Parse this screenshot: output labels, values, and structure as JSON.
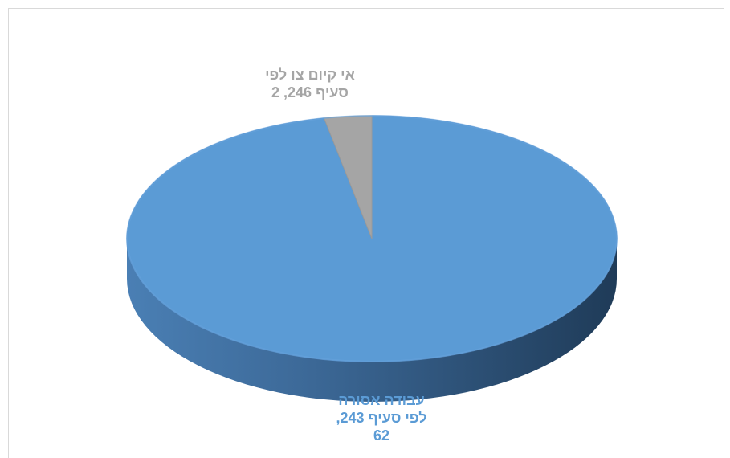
{
  "chart_data": {
    "type": "pie",
    "style": "3d",
    "series": [
      {
        "values": [
          62,
          2
        ]
      }
    ],
    "slices": [
      {
        "label": "עבודה אסורה לפי סעיף 243",
        "value": 62,
        "color": "#5b9bd5",
        "label_lines": [
          "עבודה אסורה",
          "לפי סעיף 243,",
          "62"
        ]
      },
      {
        "label": "אי קיום צו לפי סעיף 246",
        "value": 2,
        "color": "#a5a5a5",
        "label_lines": [
          "אי קיום צו לפי",
          "סעיף 246, 2"
        ]
      }
    ],
    "legend": "none",
    "grid": false
  }
}
